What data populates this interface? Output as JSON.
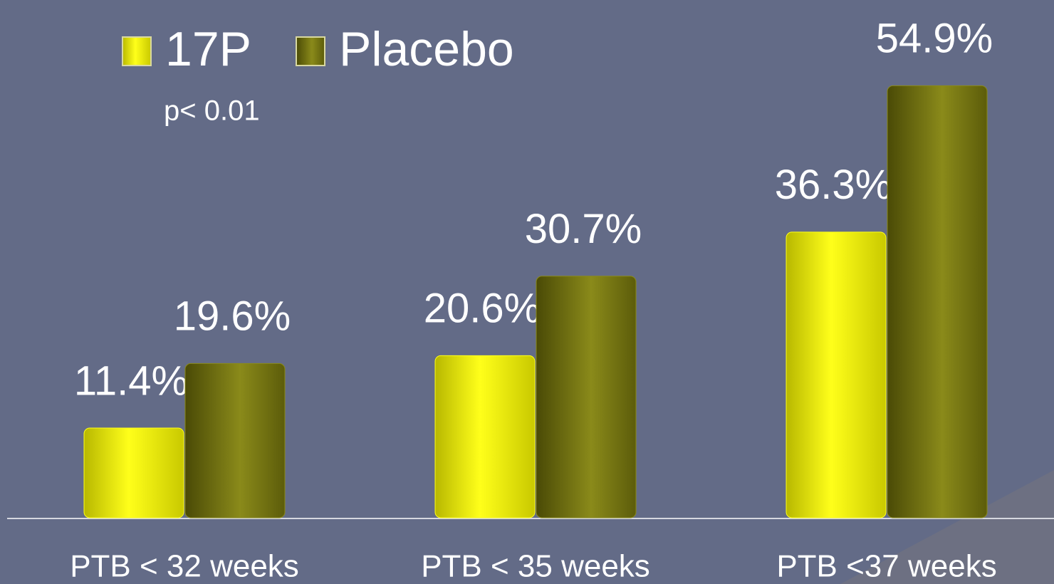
{
  "chart_data": {
    "type": "bar",
    "annotations": [
      "p< 0.01"
    ],
    "categories": [
      "PTB < 32 weeks",
      "PTB < 35 weeks",
      "PTB <37 weeks"
    ],
    "series": [
      {
        "name": "17P",
        "color": "#ffff1a",
        "values": [
          11.4,
          20.6,
          36.3
        ],
        "value_labels": [
          "11.4%",
          "20.6%",
          "36.3%"
        ]
      },
      {
        "name": "Placebo",
        "color": "#8a8a1a",
        "values": [
          19.6,
          30.7,
          54.9
        ],
        "value_labels": [
          "19.6%",
          "30.7%",
          "54.9%"
        ]
      }
    ],
    "ylim": [
      0,
      60
    ],
    "legend": "top-left"
  }
}
